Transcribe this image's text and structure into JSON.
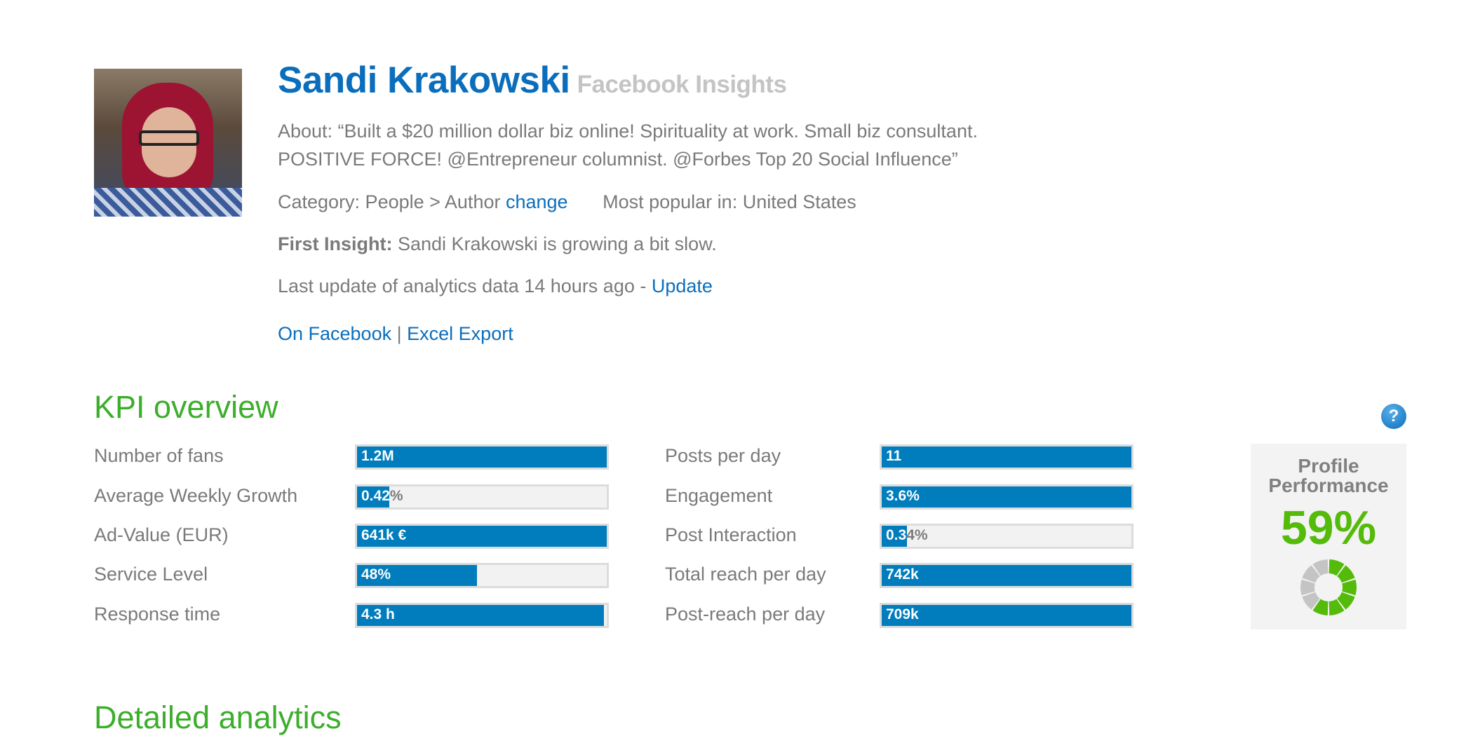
{
  "profile": {
    "name": "Sandi Krakowski",
    "subtitle": "Facebook Insights",
    "about": [
      "About: “Built a $20 million dollar biz online! Spirituality at work. Small biz consultant.",
      "POSITIVE FORCE! @Entrepreneur columnist. @Forbes Top 20 Social Influence”"
    ],
    "category_label": "Category: People > Author",
    "change_link": "change",
    "popular_label": "Most popular in: United States",
    "first_insight_label": "First Insight:",
    "first_insight_text": " Sandi Krakowski is growing a bit slow.",
    "last_update_text": "Last update of analytics data 14 hours ago - ",
    "update_link": "Update",
    "on_facebook_link": "On Facebook",
    "separator": "|",
    "excel_export_link": "Excel Export"
  },
  "kpi": {
    "title": "KPI overview",
    "bar_color": "#017dbd",
    "left": [
      {
        "label": "Number of fans",
        "value": "1.2M",
        "fill": 1.0
      },
      {
        "label": "Average Weekly Growth",
        "value": "0.42%",
        "fill": 0.13
      },
      {
        "label": "Ad-Value (EUR)",
        "value": "641k €",
        "fill": 1.0
      },
      {
        "label": "Service Level",
        "value": "48%",
        "fill": 0.48
      },
      {
        "label": "Response time",
        "value": "4.3 h",
        "fill": 0.99
      }
    ],
    "right": [
      {
        "label": "Posts per day",
        "value": "11",
        "fill": 1.0
      },
      {
        "label": "Engagement",
        "value": "3.6%",
        "fill": 1.0
      },
      {
        "label": "Post Interaction",
        "value": "0.34%",
        "fill": 0.1
      },
      {
        "label": "Total reach per day",
        "value": "742k",
        "fill": 1.0
      },
      {
        "label": "Post-reach per day",
        "value": "709k",
        "fill": 1.0
      }
    ]
  },
  "performance": {
    "title_line1": "Profile",
    "title_line2": "Performance",
    "value": "59%",
    "fraction": 0.59,
    "color": "#55bb0a",
    "help_icon": "question-circle-icon",
    "help_glyph": "?"
  },
  "detailed": {
    "title": "Detailed analytics"
  }
}
